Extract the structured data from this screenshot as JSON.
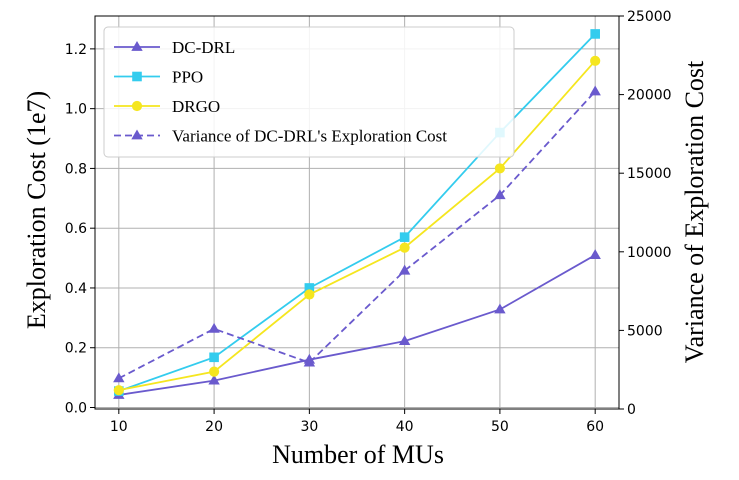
{
  "chart_data": {
    "type": "line",
    "xlabel": "Number of MUs",
    "ylabel": "Exploration Cost (1e7)",
    "y2label": "Variance of Exploration Cost",
    "x": [
      10,
      20,
      30,
      40,
      50,
      60
    ],
    "x_ticks": [
      "10",
      "20",
      "30",
      "40",
      "50",
      "60"
    ],
    "xlim": [
      7.5,
      62.5
    ],
    "ylim": [
      -0.005,
      1.31
    ],
    "y_ticks": [
      "0.0",
      "0.2",
      "0.4",
      "0.6",
      "0.8",
      "1.0",
      "1.2"
    ],
    "y2lim": [
      0,
      25000
    ],
    "y2_ticks": [
      "0",
      "5000",
      "10000",
      "15000",
      "20000",
      "25000"
    ],
    "grid": true,
    "legend_position": "top-left",
    "series": [
      {
        "name": "DC-DRL",
        "axis": "left",
        "color": "#6a5acd",
        "marker": "triangle",
        "dash": "solid",
        "values": [
          0.042,
          0.09,
          0.16,
          0.222,
          0.328,
          0.51
        ]
      },
      {
        "name": "PPO",
        "axis": "left",
        "color": "#33ccee",
        "marker": "square",
        "dash": "solid",
        "values": [
          0.055,
          0.168,
          0.4,
          0.57,
          0.92,
          1.25
        ]
      },
      {
        "name": "DRGO",
        "axis": "left",
        "color": "#f5e61f",
        "marker": "circle",
        "dash": "solid",
        "values": [
          0.058,
          0.12,
          0.378,
          0.535,
          0.8,
          1.16
        ]
      },
      {
        "name": "Variance of DC-DRL's Exploration Cost",
        "axis": "right",
        "color": "#6a5acd",
        "marker": "triangle",
        "dash": "dashed",
        "values": [
          1950,
          5100,
          2950,
          8800,
          13600,
          20200
        ]
      }
    ]
  }
}
